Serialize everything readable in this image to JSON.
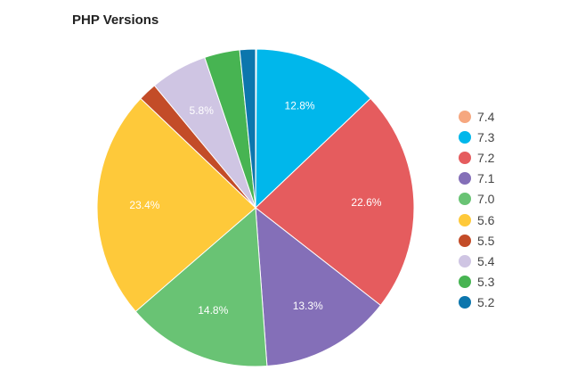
{
  "chart_data": {
    "type": "pie",
    "title": "PHP Versions",
    "legend_position": "right",
    "categories": [
      "7.4",
      "7.3",
      "7.2",
      "7.1",
      "7.0",
      "5.6",
      "5.5",
      "5.4",
      "5.3",
      "5.2"
    ],
    "values": [
      0.1,
      12.8,
      22.6,
      13.3,
      14.8,
      23.4,
      1.9,
      5.8,
      3.6,
      1.6
    ],
    "labels": [
      "",
      "12.8%",
      "22.6%",
      "13.3%",
      "14.8%",
      "23.4%",
      "",
      "5.8%",
      "",
      ""
    ],
    "colors": [
      "#f6a77f",
      "#00b7eb",
      "#e55c5e",
      "#846fb8",
      "#69c374",
      "#fec93a",
      "#c34c28",
      "#cfc5e3",
      "#47b452",
      "#0c76ad"
    ]
  }
}
